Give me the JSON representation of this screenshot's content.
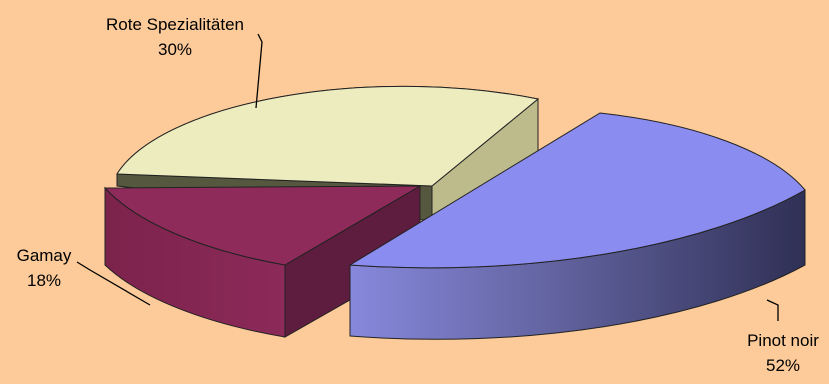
{
  "chart_data": {
    "type": "pie",
    "style": "3d-exploded",
    "background": "#fccb99",
    "slices": [
      {
        "label": "Pinot noir",
        "value": 52,
        "display": "52%",
        "color_top": "#8b8cef",
        "color_side_light": "#8485d8",
        "color_side_dark": "#33345c"
      },
      {
        "label": "Gamay",
        "value": 18,
        "display": "18%",
        "color_top": "#8f2b5b",
        "color_side_light": "#7d244e",
        "color_side_dark": "#5e1d3d"
      },
      {
        "label": "Rote Spezialitäten",
        "value": 30,
        "display": "30%",
        "color_top": "#edecbf",
        "color_side_light": "#c6c496",
        "color_side_dark": "#5a5c45"
      }
    ]
  }
}
